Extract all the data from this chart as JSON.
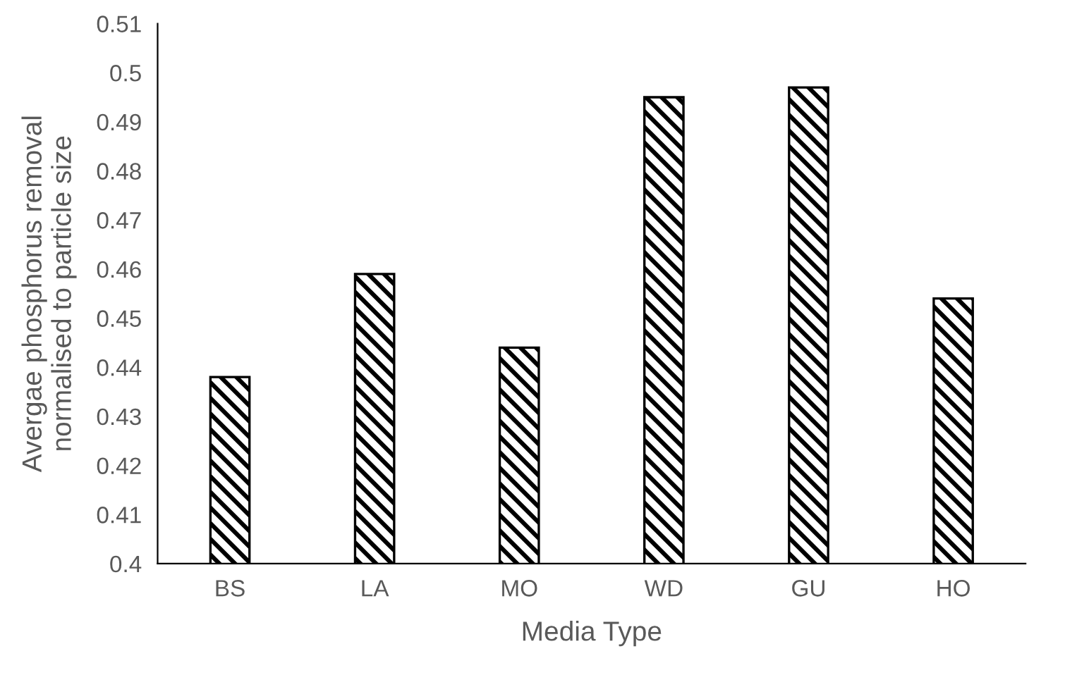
{
  "chart_data": {
    "type": "bar",
    "xlabel": "Media Type",
    "ylabel": "Avergae phosphorus removal\nnormalised to particle size",
    "categories": [
      "BS",
      "LA",
      "MO",
      "WD",
      "GU",
      "HO"
    ],
    "values": [
      0.438,
      0.459,
      0.444,
      0.495,
      0.497,
      0.454
    ],
    "color": "#000000",
    "ylim": [
      0.4,
      0.51
    ],
    "yticks": [
      0.4,
      0.41,
      0.42,
      0.43,
      0.44,
      0.45,
      0.46,
      0.47,
      0.48,
      0.49,
      0.5,
      0.51
    ],
    "grid": false,
    "legend": false
  }
}
